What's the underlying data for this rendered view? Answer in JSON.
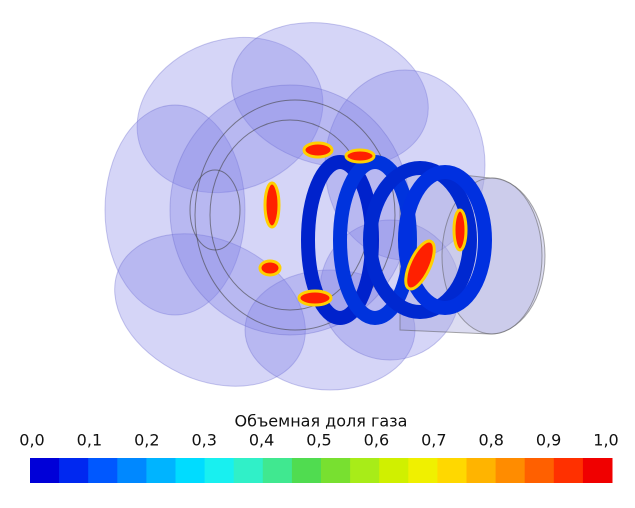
{
  "colorbar": {
    "title": "Объемная доля газа",
    "lim": [
      0,
      1
    ],
    "ticks": [
      {
        "value": 0,
        "label": "0,0"
      },
      {
        "value": 0.1,
        "label": "0,1"
      },
      {
        "value": 0.2,
        "label": "0,2"
      },
      {
        "value": 0.3,
        "label": "0,3"
      },
      {
        "value": 0.4,
        "label": "0,4"
      },
      {
        "value": 0.5,
        "label": "0,5"
      },
      {
        "value": 0.6,
        "label": "0,6"
      },
      {
        "value": 0.7,
        "label": "0,7"
      },
      {
        "value": 0.8,
        "label": "0,8"
      },
      {
        "value": 0.9,
        "label": "0,9"
      },
      {
        "value": 1,
        "label": "1,0"
      }
    ],
    "colors": [
      "#0000d8",
      "#0028f0",
      "#0058ff",
      "#0088ff",
      "#00b4ff",
      "#00dcff",
      "#18f0f0",
      "#30f0c8",
      "#40e890",
      "#50dc50",
      "#78e030",
      "#a8ec18",
      "#d0f000",
      "#f0f000",
      "#ffd800",
      "#ffb400",
      "#ff8c00",
      "#ff6000",
      "#ff3000",
      "#f00000"
    ]
  }
}
